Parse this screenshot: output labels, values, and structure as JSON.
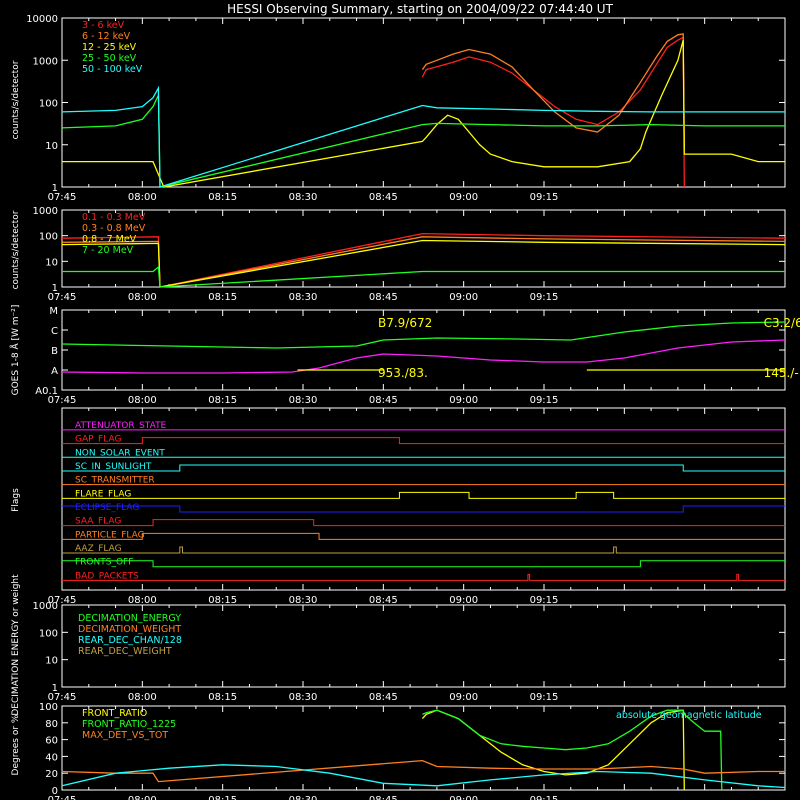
{
  "title": "HESSI Observing Summary, starting on 2004/09/22 07:44:40 UT",
  "time_ticks": [
    "07:45",
    "08:00",
    "08:15",
    "08:30",
    "08:45",
    "09:00",
    "09:15"
  ],
  "colors": {
    "background": "#000000",
    "axis": "#ffffff",
    "red": "#ff2020",
    "orange": "#ff8020",
    "yellow": "#ffff00",
    "green": "#20ff20",
    "cyan": "#20ffff",
    "magenta": "#ff20ff",
    "blue": "#2020ff",
    "olive": "#c0a040"
  },
  "chart_data": [
    {
      "type": "line",
      "panel": "lightcurve-low",
      "ylabel": "counts/s/detector",
      "yscale": "log",
      "ylim": [
        1,
        10000
      ],
      "yticks": [
        "1",
        "10",
        "100",
        "1000",
        "10000"
      ],
      "legend": [
        {
          "name": "3 - 6 keV",
          "color": "#ff2020"
        },
        {
          "name": "6 - 12 keV",
          "color": "#ff8020"
        },
        {
          "name": "12 - 25 keV",
          "color": "#ffff00"
        },
        {
          "name": "25 - 50 keV",
          "color": "#20ff20"
        },
        {
          "name": "50 - 100 keV",
          "color": "#20ffff"
        }
      ],
      "series": [
        {
          "name": "3 - 6 keV",
          "color": "#ff2020",
          "x": [
            67.3,
            68,
            70,
            73,
            76,
            80,
            84,
            88,
            92,
            96,
            100,
            104,
            108,
            111,
            113,
            115,
            116,
            116.2
          ],
          "y": [
            400,
            600,
            700,
            900,
            1200,
            900,
            500,
            200,
            80,
            40,
            30,
            60,
            200,
            800,
            2000,
            3000,
            3500,
            1
          ]
        },
        {
          "name": "6 - 12 keV",
          "color": "#ff8020",
          "x": [
            67.3,
            68,
            70,
            73,
            76,
            80,
            84,
            88,
            92,
            96,
            100,
            104,
            108,
            111,
            113,
            115,
            116,
            116.2
          ],
          "y": [
            600,
            800,
            1000,
            1400,
            1800,
            1400,
            700,
            200,
            60,
            25,
            20,
            50,
            300,
            1200,
            2800,
            4000,
            4200,
            8
          ]
        },
        {
          "name": "12 - 25 keV",
          "color": "#ffff00",
          "x": [
            0,
            10,
            17,
            19,
            67.3,
            68,
            70,
            72,
            74,
            76,
            78,
            80,
            84,
            90,
            100,
            106,
            108,
            109,
            112,
            115,
            116,
            116.2,
            125,
            130,
            135
          ],
          "y": [
            4,
            4,
            4,
            1,
            12,
            15,
            30,
            50,
            40,
            20,
            10,
            6,
            4,
            3,
            3,
            4,
            8,
            20,
            150,
            1000,
            3000,
            6,
            6,
            4,
            4
          ]
        },
        {
          "name": "25 - 50 keV",
          "color": "#20ff20",
          "x": [
            0,
            10,
            15,
            17,
            18,
            18.3,
            67.3,
            70,
            80,
            90,
            100,
            110,
            120,
            130,
            135
          ],
          "y": [
            25,
            28,
            40,
            80,
            150,
            1,
            30,
            32,
            30,
            28,
            28,
            30,
            28,
            28,
            28
          ]
        },
        {
          "name": "50 - 100 keV",
          "color": "#20ffff",
          "x": [
            0,
            10,
            15,
            17,
            18,
            18.3,
            67.3,
            70,
            80,
            90,
            100,
            110,
            120,
            130,
            135
          ],
          "y": [
            60,
            65,
            80,
            130,
            220,
            1,
            85,
            75,
            70,
            65,
            62,
            60,
            60,
            60,
            60
          ]
        }
      ]
    },
    {
      "type": "line",
      "panel": "lightcurve-high",
      "ylabel": "counts/s/detector",
      "yscale": "log",
      "ylim": [
        1,
        1000
      ],
      "yticks": [
        "1",
        "10",
        "100",
        "1000"
      ],
      "legend": [
        {
          "name": "0.1 - 0.3 MeV",
          "color": "#ff2020"
        },
        {
          "name": "0.3 - 0.8 MeV",
          "color": "#ff8020"
        },
        {
          "name": "0.8 - 7 MeV",
          "color": "#ffff00"
        },
        {
          "name": "7 - 20 MeV",
          "color": "#20ff20"
        }
      ],
      "series": [
        {
          "name": "0.1 - 0.3 MeV",
          "color": "#ff2020",
          "x": [
            0,
            18,
            18.3,
            67.3,
            90,
            135
          ],
          "y": [
            80,
            90,
            1,
            120,
            100,
            80
          ]
        },
        {
          "name": "0.3 - 0.8 MeV",
          "color": "#ff8020",
          "x": [
            0,
            18,
            18.3,
            67.3,
            90,
            135
          ],
          "y": [
            55,
            60,
            1,
            90,
            75,
            60
          ]
        },
        {
          "name": "0.8 - 7 MeV",
          "color": "#ffff00",
          "x": [
            0,
            18,
            18.3,
            67.3,
            90,
            135
          ],
          "y": [
            45,
            50,
            1,
            65,
            55,
            45
          ]
        },
        {
          "name": "7 - 20 MeV",
          "color": "#20ff20",
          "x": [
            0,
            17,
            18,
            18.3,
            67.3,
            90,
            135
          ],
          "y": [
            4,
            4,
            6,
            1,
            4,
            4,
            4
          ]
        }
      ]
    },
    {
      "type": "line",
      "panel": "goes",
      "ylabel": "GOES 1-8 Å [W m⁻²]",
      "yticks": [
        "A0.1",
        "A",
        "B",
        "C",
        "M"
      ],
      "ylim": [
        0,
        4
      ],
      "annotations": [
        {
          "text": "B7.9/672",
          "x": 59,
          "y": 3.0,
          "color": "#ffff00"
        },
        {
          "text": "953./83.",
          "x": 59,
          "y": 0.5,
          "color": "#ffff00"
        },
        {
          "text": "C3.2/6",
          "x": 131,
          "y": 3.0,
          "color": "#ffff00"
        },
        {
          "text": "145./-",
          "x": 131,
          "y": 0.5,
          "color": "#ffff00"
        }
      ],
      "series": [
        {
          "name": "",
          "color": "#20ff20",
          "x": [
            0,
            20,
            40,
            55,
            60,
            70,
            85,
            95,
            105,
            115,
            125,
            135
          ],
          "y": [
            2.3,
            2.2,
            2.1,
            2.2,
            2.5,
            2.6,
            2.55,
            2.5,
            2.9,
            3.2,
            3.35,
            3.4
          ]
        },
        {
          "name": "",
          "color": "#ff20ff",
          "x": [
            0,
            15,
            30,
            43,
            48,
            55,
            60,
            70,
            80,
            90,
            98,
            105,
            115,
            125,
            135
          ],
          "y": [
            0.9,
            0.85,
            0.85,
            0.9,
            1.1,
            1.6,
            1.8,
            1.7,
            1.5,
            1.4,
            1.4,
            1.6,
            2.1,
            2.4,
            2.5
          ]
        },
        {
          "name": "",
          "color": "#ffff00",
          "x": [
            44,
            60
          ],
          "y": [
            1.0,
            1.0
          ]
        },
        {
          "name": "",
          "color": "#ffff00",
          "x": [
            98,
            135
          ],
          "y": [
            1.0,
            1.0
          ]
        }
      ]
    },
    {
      "type": "line",
      "panel": "flags",
      "ylabel": "Flags",
      "flags": [
        {
          "name": "ATTENUATOR_STATE",
          "color": "#ff20ff",
          "steps": []
        },
        {
          "name": "GAP_FLAG",
          "color": "#ff2020",
          "steps": [
            [
              0,
              0
            ],
            [
              15,
              1
            ],
            [
              63,
              0
            ]
          ]
        },
        {
          "name": "NON_SOLAR_EVENT",
          "color": "#20ffff",
          "steps": []
        },
        {
          "name": "SC_IN_SUNLIGHT",
          "color": "#20ffff",
          "steps": [
            [
              0,
              0
            ],
            [
              22,
              1
            ],
            [
              116,
              0
            ]
          ]
        },
        {
          "name": "SC_TRANSMITTER",
          "color": "#ff8020",
          "steps": []
        },
        {
          "name": "FLARE_FLAG",
          "color": "#ffff00",
          "steps": [
            [
              0,
              0
            ],
            [
              63,
              1
            ],
            [
              76,
              0
            ],
            [
              96,
              1
            ],
            [
              103,
              0
            ]
          ]
        },
        {
          "name": "ECLIPSE_FLAG",
          "color": "#2020ff",
          "steps": [
            [
              0,
              1
            ],
            [
              22,
              0
            ],
            [
              116,
              1
            ]
          ]
        },
        {
          "name": "SAA_FLAG",
          "color": "#ff2020",
          "steps": [
            [
              0,
              0
            ],
            [
              17,
              1
            ],
            [
              47,
              0
            ]
          ]
        },
        {
          "name": "PARTICLE_FLAG",
          "color": "#ff8020",
          "steps": [
            [
              0,
              0
            ],
            [
              15,
              1
            ],
            [
              48,
              0
            ]
          ]
        },
        {
          "name": "AAZ_FLAG",
          "color": "#c0a040",
          "steps": [
            [
              0,
              0
            ],
            [
              22,
              1
            ],
            [
              22.5,
              0
            ],
            [
              103,
              1
            ],
            [
              103.5,
              0
            ]
          ]
        },
        {
          "name": "FRONTS_OFF",
          "color": "#20ff20",
          "steps": [
            [
              0,
              1
            ],
            [
              17,
              0
            ],
            [
              108,
              1
            ]
          ]
        },
        {
          "name": "BAD_PACKETS",
          "color": "#ff2020",
          "steps": [
            [
              0,
              0
            ],
            [
              87,
              1
            ],
            [
              87.3,
              0
            ],
            [
              126,
              1
            ],
            [
              126.3,
              0
            ]
          ]
        }
      ]
    },
    {
      "type": "line",
      "panel": "decimation",
      "ylabel": "DECIMATION ENERGY or weight",
      "yscale": "log",
      "ylim": [
        1,
        1000
      ],
      "yticks": [
        "1",
        "10",
        "100",
        "1000"
      ],
      "legend": [
        {
          "name": "DECIMATION_ENERGY",
          "color": "#20ff20"
        },
        {
          "name": "DECIMATION_WEIGHT",
          "color": "#ff8020"
        },
        {
          "name": "REAR_DEC_CHAN/128",
          "color": "#20ffff"
        },
        {
          "name": "REAR_DEC_WEIGHT",
          "color": "#c0a040"
        }
      ],
      "series": []
    },
    {
      "type": "line",
      "panel": "ratios",
      "ylabel": "Degrees or %",
      "ylim": [
        0,
        100
      ],
      "yticks": [
        "0",
        "20",
        "40",
        "60",
        "80",
        "100"
      ],
      "legend": [
        {
          "name": "FRONT_RATIO",
          "color": "#ffff00"
        },
        {
          "name": "FRONT_RATIO_1225",
          "color": "#20ff20"
        },
        {
          "name": "MAX_DET_VS_TOT",
          "color": "#ff8020"
        }
      ],
      "annotation": {
        "text": "absolute geomagnetic latitude",
        "color": "#20ffff"
      },
      "series": [
        {
          "name": "FRONT_RATIO",
          "color": "#ffff00",
          "x": [
            67.3,
            68,
            70,
            74,
            78,
            82,
            86,
            90,
            94,
            98,
            102,
            106,
            110,
            113,
            116,
            116.2
          ],
          "y": [
            85,
            90,
            95,
            85,
            65,
            45,
            30,
            22,
            18,
            20,
            30,
            55,
            80,
            92,
            95,
            0
          ]
        },
        {
          "name": "FRONT_RATIO_1225",
          "color": "#20ff20",
          "x": [
            67.3,
            68,
            70,
            74,
            78,
            82,
            86,
            90,
            94,
            98,
            102,
            106,
            110,
            113,
            116,
            116.2,
            118,
            120,
            123,
            123.2
          ],
          "y": [
            90,
            92,
            95,
            85,
            65,
            55,
            52,
            50,
            48,
            50,
            55,
            70,
            88,
            95,
            95,
            90,
            80,
            70,
            70,
            0
          ]
        },
        {
          "name": "MAX_DET_VS_TOT",
          "color": "#ff8020",
          "x": [
            0,
            10,
            17,
            18,
            67.3,
            70,
            80,
            90,
            100,
            110,
            116,
            120,
            130,
            135
          ],
          "y": [
            22,
            20,
            20,
            10,
            35,
            28,
            26,
            25,
            25,
            28,
            25,
            20,
            22,
            22
          ]
        },
        {
          "name": "absolute geomagnetic latitude",
          "color": "#20ffff",
          "x": [
            0,
            10,
            20,
            30,
            40,
            50,
            60,
            70,
            80,
            90,
            100,
            110,
            120,
            130,
            135
          ],
          "y": [
            5,
            20,
            26,
            30,
            28,
            20,
            8,
            5,
            12,
            18,
            22,
            20,
            12,
            5,
            3
          ]
        }
      ]
    }
  ]
}
